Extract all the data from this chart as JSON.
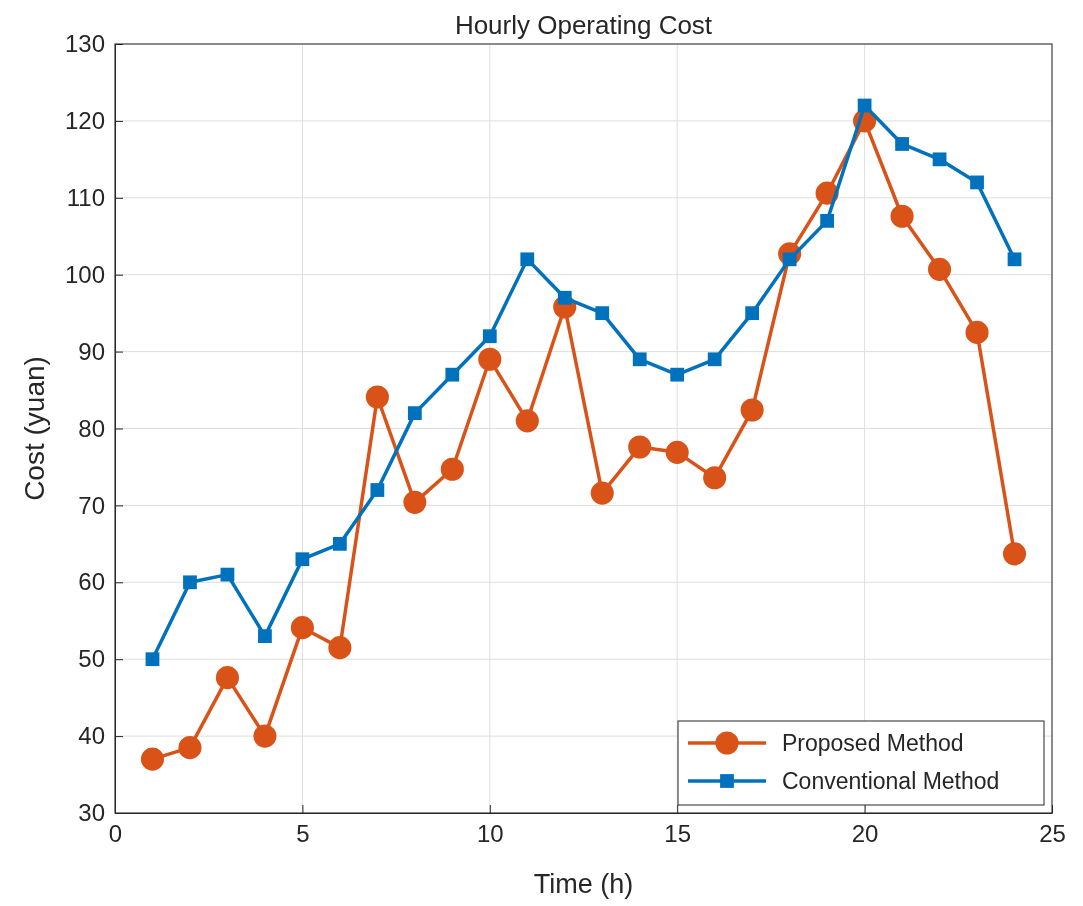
{
  "chart_data": {
    "type": "line",
    "title": "Hourly Operating Cost",
    "xlabel": "Time (h)",
    "ylabel": "Cost (yuan)",
    "x": [
      1,
      2,
      3,
      4,
      5,
      6,
      7,
      8,
      9,
      10,
      11,
      12,
      13,
      14,
      15,
      16,
      17,
      18,
      19,
      20,
      21,
      22,
      23,
      24
    ],
    "series": [
      {
        "name": "Proposed Method",
        "color": "#d95319",
        "marker": "circle",
        "values": [
          37.0,
          38.5,
          47.6,
          40.0,
          54.1,
          51.5,
          84.1,
          70.4,
          74.7,
          89.0,
          81.0,
          95.8,
          71.6,
          77.6,
          76.9,
          73.6,
          82.4,
          102.7,
          110.6,
          120.0,
          107.6,
          100.7,
          92.5,
          63.7
        ]
      },
      {
        "name": "Conventional Method",
        "color": "#0072bd",
        "marker": "square",
        "values": [
          50,
          60,
          61,
          53,
          63,
          65,
          72,
          82,
          87,
          92,
          102,
          97,
          95,
          89,
          87,
          89,
          95,
          102,
          107,
          122,
          117,
          115,
          112,
          102
        ]
      }
    ],
    "xlim": [
      0,
      25
    ],
    "xticks": [
      0,
      5,
      10,
      15,
      20,
      25
    ],
    "ylim": [
      30,
      130
    ],
    "yticks": [
      30,
      40,
      50,
      60,
      70,
      80,
      90,
      100,
      110,
      120,
      130
    ],
    "grid": true,
    "legend": "bottom right",
    "line_style": "solid"
  }
}
